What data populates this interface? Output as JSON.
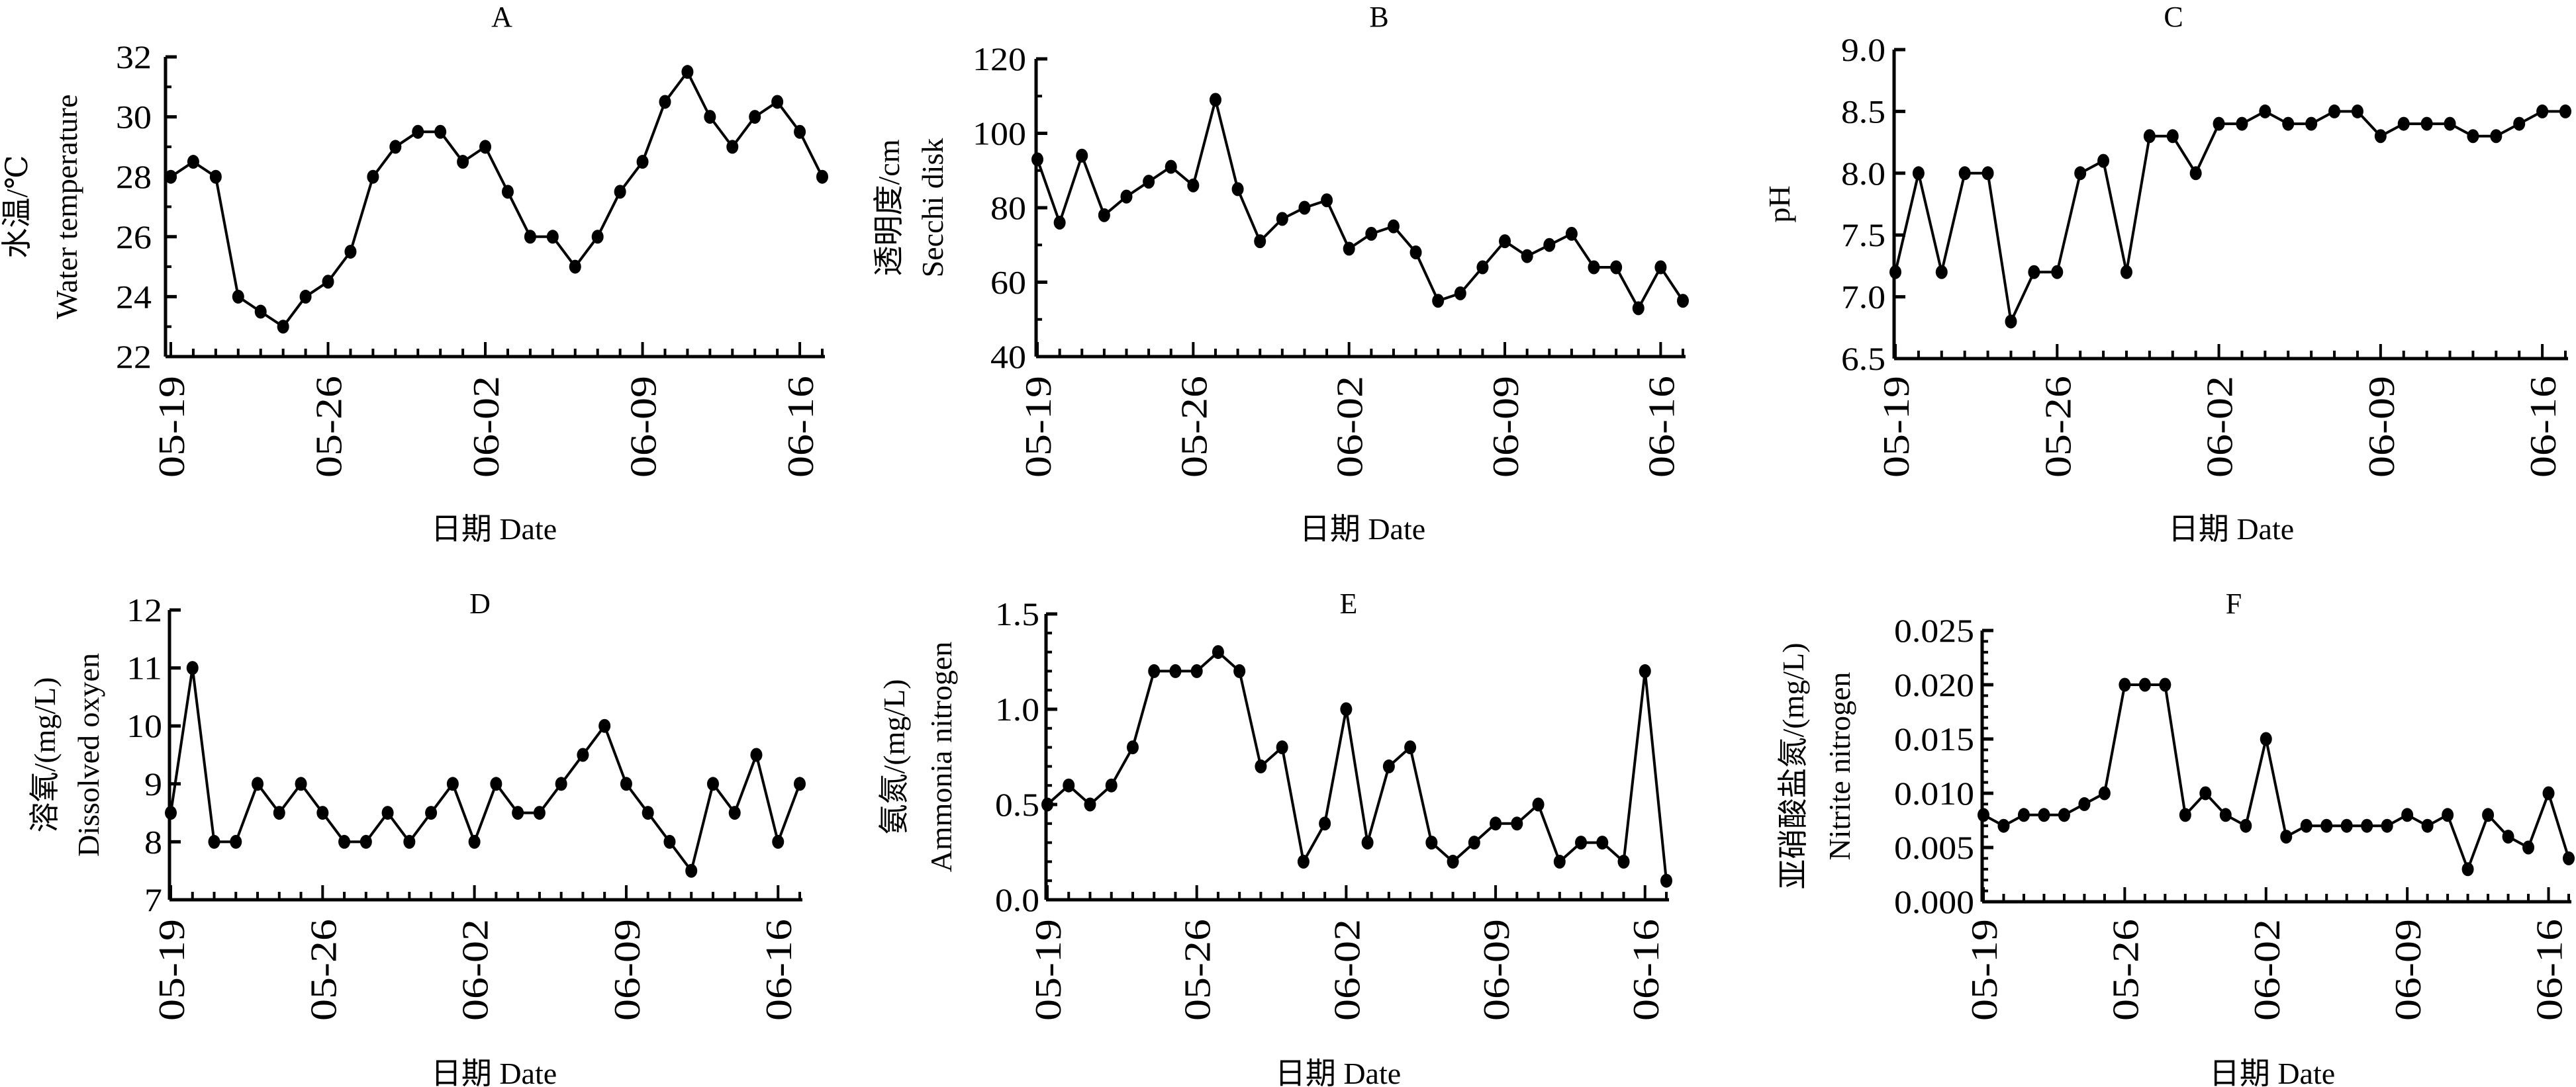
{
  "chart_data": [
    {
      "type": "line",
      "title": "A",
      "ylabel": [
        "水温/℃",
        "Water temperature"
      ],
      "xlabel": "日期 Date",
      "categories": [
        "05-19",
        "05-20",
        "05-21",
        "05-22",
        "05-23",
        "05-24",
        "05-25",
        "05-26",
        "05-27",
        "05-28",
        "05-29",
        "05-30",
        "05-31",
        "06-01",
        "06-02",
        "06-03",
        "06-04",
        "06-05",
        "06-06",
        "06-07",
        "06-08",
        "06-09",
        "06-10",
        "06-11",
        "06-12",
        "06-13",
        "06-14",
        "06-15",
        "06-16",
        "06-17"
      ],
      "xtick_labels": [
        "05-19",
        "05-26",
        "06-02",
        "06-09",
        "06-16"
      ],
      "yticks": [
        "22",
        "24",
        "26",
        "28",
        "30",
        "32"
      ],
      "ylim": [
        22,
        32
      ],
      "values": [
        28,
        28.5,
        28,
        24,
        23.5,
        23,
        24,
        24.5,
        25.5,
        28,
        29,
        29.5,
        29.5,
        28.5,
        29,
        27.5,
        26,
        26,
        25,
        26,
        27.5,
        28.5,
        30.5,
        31.5,
        30,
        29,
        30,
        30.5,
        29.5,
        28
      ],
      "color": "#000000"
    },
    {
      "type": "line",
      "title": "B",
      "ylabel": [
        "透明度/cm",
        "Secchi disk"
      ],
      "xlabel": "日期 Date",
      "categories": [
        "05-19",
        "05-20",
        "05-21",
        "05-22",
        "05-23",
        "05-24",
        "05-25",
        "05-26",
        "05-27",
        "05-28",
        "05-29",
        "05-30",
        "05-31",
        "06-01",
        "06-02",
        "06-03",
        "06-04",
        "06-05",
        "06-06",
        "06-07",
        "06-08",
        "06-09",
        "06-10",
        "06-11",
        "06-12",
        "06-13",
        "06-14",
        "06-15",
        "06-16",
        "06-17"
      ],
      "xtick_labels": [
        "05-19",
        "05-26",
        "06-02",
        "06-09",
        "06-16"
      ],
      "yticks": [
        "40",
        "60",
        "80",
        "100",
        "120"
      ],
      "ylim": [
        40,
        120
      ],
      "values": [
        93,
        76,
        94,
        78,
        83,
        87,
        91,
        86,
        109,
        85,
        71,
        77,
        80,
        82,
        69,
        73,
        75,
        68,
        55,
        57,
        64,
        71,
        67,
        70,
        73,
        64,
        64,
        53,
        64,
        55
      ],
      "color": "#000000"
    },
    {
      "type": "line",
      "title": "C",
      "ylabel": [
        "pH"
      ],
      "xlabel": "日期 Date",
      "categories": [
        "05-19",
        "05-20",
        "05-21",
        "05-22",
        "05-23",
        "05-24",
        "05-25",
        "05-26",
        "05-27",
        "05-28",
        "05-29",
        "05-30",
        "05-31",
        "06-01",
        "06-02",
        "06-03",
        "06-04",
        "06-05",
        "06-06",
        "06-07",
        "06-08",
        "06-09",
        "06-10",
        "06-11",
        "06-12",
        "06-13",
        "06-14",
        "06-15",
        "06-16",
        "06-17"
      ],
      "xtick_labels": [
        "05-19",
        "05-26",
        "06-02",
        "06-09",
        "06-16"
      ],
      "yticks": [
        "6.5",
        "7.0",
        "7.5",
        "8.0",
        "8.5",
        "9.0"
      ],
      "ylim": [
        6.5,
        9.0
      ],
      "values": [
        7.2,
        8.0,
        7.2,
        8.0,
        8.0,
        6.8,
        7.2,
        7.2,
        8.0,
        8.1,
        7.2,
        8.3,
        8.3,
        8.0,
        8.4,
        8.4,
        8.5,
        8.4,
        8.4,
        8.5,
        8.5,
        8.3,
        8.4,
        8.4,
        8.4,
        8.3,
        8.3,
        8.4,
        8.5,
        8.5
      ],
      "color": "#000000"
    },
    {
      "type": "line",
      "title": "D",
      "ylabel": [
        "溶氧/(mg/L)",
        "Dissolved oxyen"
      ],
      "xlabel": "日期 Date",
      "categories": [
        "05-19",
        "05-20",
        "05-21",
        "05-22",
        "05-23",
        "05-24",
        "05-25",
        "05-26",
        "05-27",
        "05-28",
        "05-29",
        "05-30",
        "05-31",
        "06-01",
        "06-02",
        "06-03",
        "06-04",
        "06-05",
        "06-06",
        "06-07",
        "06-08",
        "06-09",
        "06-10",
        "06-11",
        "06-12",
        "06-13",
        "06-14",
        "06-15",
        "06-16",
        "06-17"
      ],
      "xtick_labels": [
        "05-19",
        "05-26",
        "06-02",
        "06-09",
        "06-16"
      ],
      "yticks": [
        "7",
        "8",
        "9",
        "10",
        "11",
        "12"
      ],
      "ylim": [
        7,
        12
      ],
      "values": [
        8.5,
        11,
        8,
        8,
        9,
        8.5,
        9,
        8.5,
        8,
        8,
        8.5,
        8,
        8.5,
        9,
        8,
        9,
        8.5,
        8.5,
        9,
        9.5,
        10,
        9,
        8.5,
        8,
        7.5,
        9,
        8.5,
        9.5,
        8,
        9
      ],
      "color": "#000000"
    },
    {
      "type": "line",
      "title": "E",
      "ylabel": [
        "氨氮/(mg/L)",
        "Ammonia nitrogen"
      ],
      "xlabel": "日期 Date",
      "categories": [
        "05-19",
        "05-20",
        "05-21",
        "05-22",
        "05-23",
        "05-24",
        "05-25",
        "05-26",
        "05-27",
        "05-28",
        "05-29",
        "05-30",
        "05-31",
        "06-01",
        "06-02",
        "06-03",
        "06-04",
        "06-05",
        "06-06",
        "06-07",
        "06-08",
        "06-09",
        "06-10",
        "06-11",
        "06-12",
        "06-13",
        "06-14",
        "06-15",
        "06-16",
        "06-17"
      ],
      "xtick_labels": [
        "05-19",
        "05-26",
        "06-02",
        "06-09",
        "06-16"
      ],
      "yticks": [
        "0.0",
        "0.5",
        "1.0",
        "1.5"
      ],
      "ylim": [
        0,
        1.5
      ],
      "values": [
        0.5,
        0.6,
        0.5,
        0.6,
        0.8,
        1.2,
        1.2,
        1.2,
        1.3,
        1.2,
        0.7,
        0.8,
        0.2,
        0.4,
        1.0,
        0.3,
        0.7,
        0.8,
        0.3,
        0.2,
        0.3,
        0.4,
        0.4,
        0.5,
        0.2,
        0.3,
        0.3,
        0.2,
        1.2,
        0.1
      ],
      "color": "#000000"
    },
    {
      "type": "line",
      "title": "F",
      "ylabel": [
        "亚硝酸盐氮/(mg/L)",
        "Nitrite nitrogen"
      ],
      "xlabel": "日期 Date",
      "categories": [
        "05-19",
        "05-20",
        "05-21",
        "05-22",
        "05-23",
        "05-24",
        "05-25",
        "05-26",
        "05-27",
        "05-28",
        "05-29",
        "05-30",
        "05-31",
        "06-01",
        "06-02",
        "06-03",
        "06-04",
        "06-05",
        "06-06",
        "06-07",
        "06-08",
        "06-09",
        "06-10",
        "06-11",
        "06-12",
        "06-13",
        "06-14",
        "06-15",
        "06-16",
        "06-17"
      ],
      "xtick_labels": [
        "05-19",
        "05-26",
        "06-02",
        "06-09",
        "06-16"
      ],
      "yticks": [
        "0.000",
        "0.005",
        "0.010",
        "0.015",
        "0.020",
        "0.025"
      ],
      "ylim": [
        0,
        0.025
      ],
      "values": [
        0.008,
        0.007,
        0.008,
        0.008,
        0.008,
        0.009,
        0.01,
        0.02,
        0.02,
        0.02,
        0.008,
        0.01,
        0.008,
        0.007,
        0.015,
        0.006,
        0.007,
        0.007,
        0.007,
        0.007,
        0.007,
        0.008,
        0.007,
        0.008,
        0.003,
        0.008,
        0.006,
        0.005,
        0.01,
        0.004
      ],
      "color": "#000000"
    }
  ]
}
